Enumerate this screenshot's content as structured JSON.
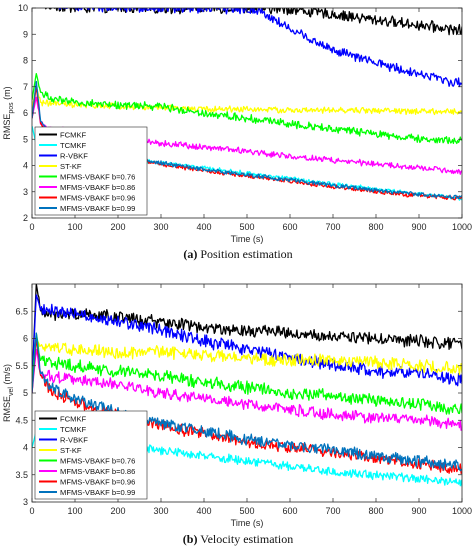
{
  "captions": {
    "a_letter": "(a)",
    "a_text": " Position estimation",
    "b_letter": "(b)",
    "b_text": " Velocity estimation"
  },
  "colors": {
    "FCMKF": "#000000",
    "TCMKF": "#00ffff",
    "R-VBKF": "#0000ff",
    "ST-KF": "#ffff00",
    "MFMS-VBAKF b=0.76": "#00ff00",
    "MFMS-VBAKF b=0.86": "#ff00ff",
    "MFMS-VBAKF b=0.96": "#ff0000",
    "MFMS-VBAKF b=0.99": "#0072bd"
  },
  "chart_data": [
    {
      "type": "line",
      "xlabel": "Time (s)",
      "ylabel_main": "RMSE",
      "ylabel_sub": "pos",
      "ylabel_unit": " (m)",
      "xlim": [
        0,
        1000
      ],
      "ylim": [
        2,
        10
      ],
      "xticks": [
        0,
        100,
        200,
        300,
        400,
        500,
        600,
        700,
        800,
        900,
        1000
      ],
      "yticks": [
        2,
        3,
        4,
        5,
        6,
        7,
        8,
        9,
        10
      ],
      "grid": false,
      "legend_position": "bottom-left",
      "series": [
        {
          "name": "FCMKF",
          "color": "#000000",
          "noise": 0.18,
          "x": [
            0,
            10,
            30,
            100,
            200,
            300,
            400,
            500,
            600,
            700,
            800,
            900,
            1000
          ],
          "y": [
            10.5,
            10.2,
            10.1,
            10.0,
            10.0,
            10.0,
            10.0,
            10.0,
            9.95,
            9.75,
            9.55,
            9.35,
            9.15
          ]
        },
        {
          "name": "TCMKF",
          "color": "#00ffff",
          "noise": 0.07,
          "x": [
            0,
            10,
            20,
            50,
            100,
            200,
            300,
            400,
            500,
            600,
            700,
            800,
            900,
            1000
          ],
          "y": [
            5.5,
            4.8,
            4.6,
            4.55,
            4.45,
            4.25,
            4.1,
            3.9,
            3.7,
            3.5,
            3.3,
            3.1,
            2.9,
            2.75
          ]
        },
        {
          "name": "R-VBKF",
          "color": "#0000ff",
          "noise": 0.16,
          "x": [
            0,
            20,
            100,
            200,
            300,
            400,
            500,
            530,
            600,
            700,
            800,
            900,
            1000
          ],
          "y": [
            10.5,
            10.2,
            10.1,
            10.0,
            10.0,
            10.0,
            9.95,
            9.9,
            9.2,
            8.4,
            7.9,
            7.5,
            7.1
          ]
        },
        {
          "name": "ST-KF",
          "color": "#ffff00",
          "noise": 0.1,
          "x": [
            0,
            10,
            20,
            50,
            100,
            200,
            300,
            400,
            500,
            600,
            700,
            800,
            900,
            1000
          ],
          "y": [
            6.2,
            7.0,
            6.4,
            6.35,
            6.3,
            6.25,
            6.2,
            6.15,
            6.15,
            6.1,
            6.1,
            6.1,
            6.05,
            6.05
          ]
        },
        {
          "name": "MFMS-VBAKF b=0.76",
          "color": "#00ff00",
          "noise": 0.13,
          "x": [
            0,
            10,
            20,
            50,
            100,
            200,
            300,
            400,
            500,
            600,
            700,
            800,
            900,
            1000
          ],
          "y": [
            6.5,
            7.5,
            6.8,
            6.5,
            6.4,
            6.3,
            6.25,
            6.0,
            5.8,
            5.6,
            5.4,
            5.2,
            5.0,
            4.95
          ]
        },
        {
          "name": "MFMS-VBAKF b=0.86",
          "color": "#ff00ff",
          "noise": 0.1,
          "x": [
            0,
            10,
            20,
            50,
            100,
            200,
            300,
            400,
            500,
            600,
            700,
            800,
            900,
            1000
          ],
          "y": [
            5.8,
            6.6,
            5.6,
            5.4,
            5.25,
            5.05,
            4.85,
            4.7,
            4.55,
            4.35,
            4.2,
            4.05,
            3.9,
            3.75
          ]
        },
        {
          "name": "MFMS-VBAKF b=0.96",
          "color": "#ff0000",
          "noise": 0.07,
          "x": [
            0,
            10,
            20,
            50,
            100,
            200,
            300,
            400,
            500,
            600,
            700,
            800,
            900,
            1000
          ],
          "y": [
            5.8,
            7.0,
            5.6,
            5.0,
            4.75,
            4.35,
            4.05,
            3.8,
            3.6,
            3.4,
            3.2,
            3.0,
            2.85,
            2.75
          ]
        },
        {
          "name": "MFMS-VBAKF b=0.99",
          "color": "#0072bd",
          "noise": 0.07,
          "x": [
            0,
            10,
            20,
            50,
            100,
            200,
            300,
            400,
            500,
            600,
            700,
            800,
            900,
            1000
          ],
          "y": [
            5.8,
            7.2,
            5.7,
            5.05,
            4.8,
            4.4,
            4.1,
            3.85,
            3.65,
            3.45,
            3.25,
            3.05,
            2.9,
            2.8
          ]
        }
      ]
    },
    {
      "type": "line",
      "xlabel": "Time (s)",
      "ylabel_main": "RMSE",
      "ylabel_sub": "vel",
      "ylabel_unit": " (m/s)",
      "xlim": [
        0,
        1000
      ],
      "ylim": [
        3,
        7
      ],
      "xticks": [
        0,
        100,
        200,
        300,
        400,
        500,
        600,
        700,
        800,
        900,
        1000
      ],
      "yticks": [
        3,
        3.5,
        4,
        4.5,
        5,
        5.5,
        6,
        6.5
      ],
      "grid": false,
      "legend_position": "bottom-left",
      "series": [
        {
          "name": "FCMKF",
          "color": "#000000",
          "noise": 0.1,
          "x": [
            0,
            10,
            20,
            50,
            100,
            200,
            300,
            400,
            500,
            600,
            700,
            800,
            900,
            1000
          ],
          "y": [
            5.2,
            7.0,
            6.5,
            6.45,
            6.45,
            6.4,
            6.3,
            6.2,
            6.15,
            6.1,
            6.05,
            6.0,
            5.95,
            5.9
          ]
        },
        {
          "name": "TCMKF",
          "color": "#00ffff",
          "noise": 0.07,
          "x": [
            0,
            10,
            20,
            50,
            100,
            200,
            300,
            400,
            500,
            600,
            700,
            800,
            900,
            1000
          ],
          "y": [
            4.0,
            4.3,
            4.25,
            4.2,
            4.15,
            4.05,
            3.95,
            3.85,
            3.75,
            3.65,
            3.55,
            3.5,
            3.42,
            3.35
          ]
        },
        {
          "name": "R-VBKF",
          "color": "#0000ff",
          "noise": 0.1,
          "x": [
            0,
            10,
            20,
            50,
            100,
            200,
            300,
            400,
            500,
            600,
            700,
            800,
            900,
            1000
          ],
          "y": [
            5.2,
            6.8,
            6.55,
            6.5,
            6.45,
            6.3,
            6.15,
            5.95,
            5.8,
            5.65,
            5.5,
            5.4,
            5.35,
            5.25
          ]
        },
        {
          "name": "ST-KF",
          "color": "#ffff00",
          "noise": 0.1,
          "x": [
            0,
            10,
            20,
            50,
            100,
            200,
            300,
            400,
            500,
            600,
            700,
            800,
            900,
            1000
          ],
          "y": [
            5.2,
            6.0,
            5.85,
            5.85,
            5.8,
            5.75,
            5.75,
            5.7,
            5.65,
            5.6,
            5.6,
            5.55,
            5.5,
            5.45
          ]
        },
        {
          "name": "MFMS-VBAKF b=0.76",
          "color": "#00ff00",
          "noise": 0.1,
          "x": [
            0,
            10,
            20,
            50,
            100,
            200,
            300,
            400,
            500,
            600,
            700,
            800,
            900,
            1000
          ],
          "y": [
            5.2,
            6.1,
            5.6,
            5.55,
            5.5,
            5.4,
            5.3,
            5.2,
            5.1,
            5.0,
            4.95,
            4.85,
            4.8,
            4.7
          ]
        },
        {
          "name": "MFMS-VBAKF b=0.86",
          "color": "#ff00ff",
          "noise": 0.09,
          "x": [
            0,
            10,
            20,
            50,
            100,
            200,
            300,
            400,
            500,
            600,
            700,
            800,
            900,
            1000
          ],
          "y": [
            5.0,
            5.8,
            5.35,
            5.3,
            5.25,
            5.15,
            5.0,
            4.9,
            4.8,
            4.7,
            4.6,
            4.55,
            4.5,
            4.4
          ]
        },
        {
          "name": "MFMS-VBAKF b=0.96",
          "color": "#ff0000",
          "noise": 0.09,
          "x": [
            0,
            10,
            20,
            50,
            100,
            200,
            300,
            400,
            500,
            600,
            700,
            800,
            900,
            1000
          ],
          "y": [
            5.0,
            6.0,
            5.3,
            5.0,
            4.85,
            4.6,
            4.4,
            4.25,
            4.1,
            4.0,
            3.9,
            3.8,
            3.7,
            3.6
          ]
        },
        {
          "name": "MFMS-VBAKF b=0.99",
          "color": "#0072bd",
          "noise": 0.09,
          "x": [
            0,
            10,
            20,
            50,
            100,
            200,
            300,
            400,
            500,
            600,
            700,
            800,
            900,
            1000
          ],
          "y": [
            5.0,
            6.1,
            5.35,
            5.05,
            4.9,
            4.65,
            4.45,
            4.3,
            4.15,
            4.05,
            3.95,
            3.85,
            3.75,
            3.65
          ]
        }
      ]
    }
  ]
}
